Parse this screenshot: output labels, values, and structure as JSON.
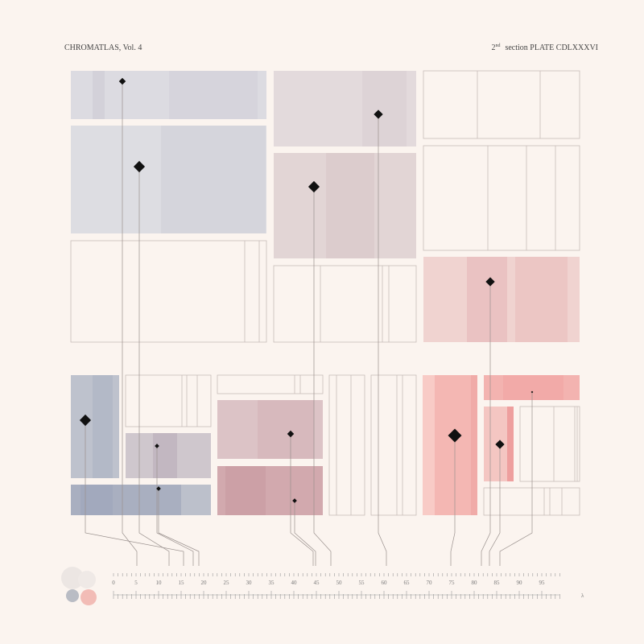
{
  "header": {
    "left": "CHROMATLAS, Vol. 4",
    "right_num": "2",
    "right_sup": "nd",
    "right_rest": "section  PLATE CDLXXXVI"
  },
  "ruler": {
    "labels": [
      0,
      5,
      10,
      15,
      20,
      25,
      30,
      35,
      40,
      45,
      50,
      55,
      60,
      65,
      70,
      75,
      80,
      85,
      90,
      95
    ],
    "unit": "λ"
  }
}
